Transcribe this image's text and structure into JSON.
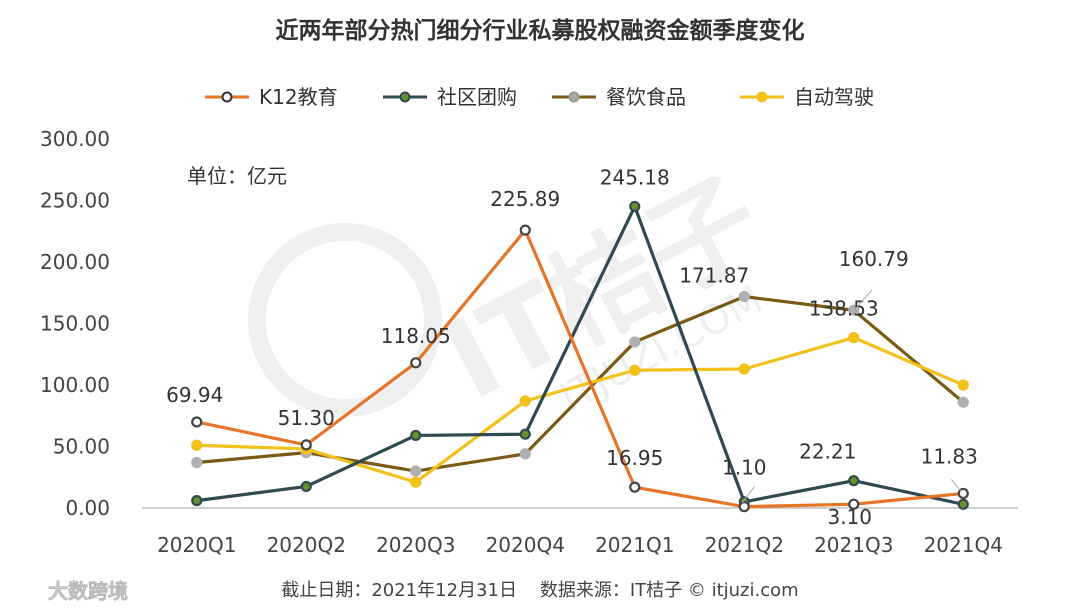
{
  "chart_data": {
    "type": "line",
    "title": "近两年部分热门细分行业私募股权融资金额季度变化",
    "unit_label": "单位：亿元",
    "categories": [
      "2020Q1",
      "2020Q2",
      "2020Q3",
      "2020Q4",
      "2021Q1",
      "2021Q2",
      "2021Q3",
      "2021Q4"
    ],
    "ylim": [
      0,
      300
    ],
    "yticks": [
      "0.00",
      "50.00",
      "100.00",
      "150.00",
      "200.00",
      "250.00",
      "300.00"
    ],
    "series": [
      {
        "name": "K12教育",
        "color": "#E8742A",
        "values": [
          69.94,
          51.3,
          118.05,
          225.89,
          16.95,
          1.1,
          3.1,
          11.83
        ]
      },
      {
        "name": "社区团购",
        "color": "#2F4A52",
        "values": [
          6.0,
          17.5,
          59.0,
          60.0,
          245.18,
          5.0,
          22.21,
          3.0
        ]
      },
      {
        "name": "餐饮食品",
        "color": "#7A5A14",
        "values": [
          37.0,
          45.0,
          30.0,
          44.0,
          135.0,
          171.87,
          160.79,
          86.0
        ]
      },
      {
        "name": "自动驾驶",
        "color": "#F2C11B",
        "values": [
          51.0,
          48.0,
          21.0,
          87.0,
          112.0,
          113.0,
          138.53,
          100.0
        ]
      }
    ],
    "data_labels": [
      {
        "text": "69.94"
      },
      {
        "text": "51.30"
      },
      {
        "text": "118.05"
      },
      {
        "text": "225.89"
      },
      {
        "text": "245.18"
      },
      {
        "text": "16.95"
      },
      {
        "text": "1.10"
      },
      {
        "text": "171.87"
      },
      {
        "text": "160.79"
      },
      {
        "text": "138.53"
      },
      {
        "text": "22.21"
      },
      {
        "text": "3.10"
      },
      {
        "text": "11.83"
      }
    ],
    "watermark": "IT桔子",
    "watermark_sub": "ITJUZI.COM",
    "footer": "截止日期：2021年12月31日    数据来源：IT桔子 © itjuzi.com",
    "brand": "大数跨境"
  },
  "colors": {
    "k12": "#E8742A",
    "community": "#2F4A52",
    "food": "#7A5A14",
    "autonomous": "#F2C11B"
  }
}
